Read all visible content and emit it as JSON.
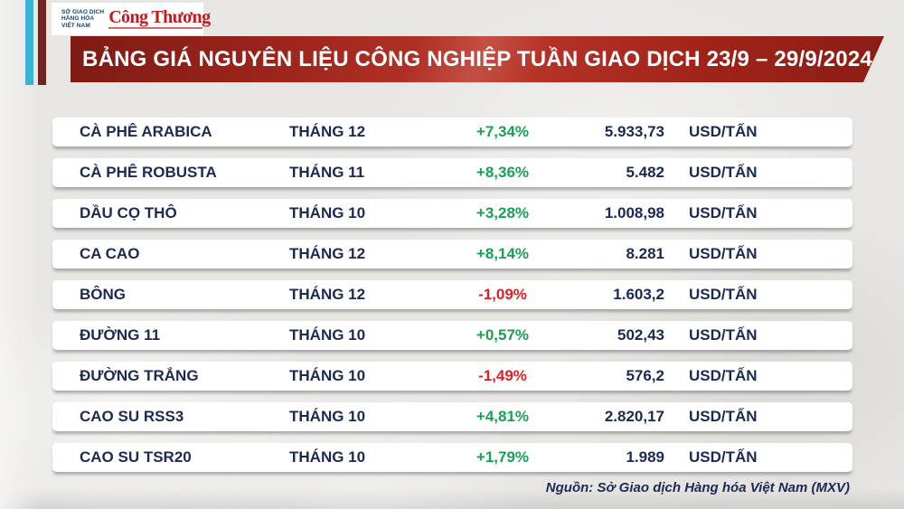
{
  "logos": {
    "mxv": {
      "lines": [
        "SỞ GIAO DỊCH",
        "HÀNG HÓA",
        "VIỆT NAM"
      ]
    },
    "congthuong": {
      "text": "Công Thương"
    }
  },
  "banner": {
    "title": "BẢNG GIÁ NGUYÊN LIỆU CÔNG NGHIỆP TUẦN GIAO DỊCH 23/9 – 29/9/2024"
  },
  "table": {
    "rows": [
      {
        "name": "CÀ PHÊ ARABICA",
        "month": "THÁNG 12",
        "change": "+7,34%",
        "direction": "up",
        "price": "5.933,73",
        "unit": "USD/TẤN"
      },
      {
        "name": "CÀ PHÊ ROBUSTA",
        "month": "THÁNG 11",
        "change": "+8,36%",
        "direction": "up",
        "price": "5.482",
        "unit": "USD/TẤN"
      },
      {
        "name": "DẦU CỌ THÔ",
        "month": "THÁNG 10",
        "change": "+3,28%",
        "direction": "up",
        "price": "1.008,98",
        "unit": "USD/TẤN"
      },
      {
        "name": "CA CAO",
        "month": "THÁNG 12",
        "change": "+8,14%",
        "direction": "up",
        "price": "8.281",
        "unit": "USD/TẤN"
      },
      {
        "name": "BÔNG",
        "month": "THÁNG 12",
        "change": "-1,09%",
        "direction": "down",
        "price": "1.603,2",
        "unit": "USD/TẤN"
      },
      {
        "name": "ĐƯỜNG 11",
        "month": "THÁNG 10",
        "change": "+0,57%",
        "direction": "up",
        "price": "502,43",
        "unit": "USD/TẤN"
      },
      {
        "name": "ĐƯỜNG TRẮNG",
        "month": "THÁNG 10",
        "change": "-1,49%",
        "direction": "down",
        "price": "576,2",
        "unit": "USD/TẤN"
      },
      {
        "name": "CAO SU RSS3",
        "month": "THÁNG 10",
        "change": "+4,81%",
        "direction": "up",
        "price": "2.820,17",
        "unit": "USD/TẤN"
      },
      {
        "name": "CAO SU TSR20",
        "month": "THÁNG 10",
        "change": "+1,79%",
        "direction": "up",
        "price": "1.989",
        "unit": "USD/TẤN"
      }
    ]
  },
  "footer": {
    "source": "Nguồn: Sở Giao dịch Hàng hóa Việt Nam (MXV)"
  },
  "colors": {
    "positive": "#15a251",
    "negative": "#e01f24",
    "text_navy": "#1b2a55",
    "banner_red": "#a3271e",
    "accent_cyan": "#38b5d6",
    "accent_maroon": "#6e2522",
    "brand_red": "#c41a1c",
    "brand_blue": "#29a8df"
  },
  "chart_data": {
    "type": "table",
    "title": "BẢNG GIÁ NGUYÊN LIỆU CÔNG NGHIỆP TUẦN GIAO DỊCH 23/9 – 29/9/2024",
    "rows": [
      {
        "commodity": "CÀ PHÊ ARABICA",
        "contract_month": "THÁNG 12",
        "weekly_change_pct": 7.34,
        "price": 5933.73,
        "unit": "USD/TẤN"
      },
      {
        "commodity": "CÀ PHÊ ROBUSTA",
        "contract_month": "THÁNG 11",
        "weekly_change_pct": 8.36,
        "price": 5482,
        "unit": "USD/TẤN"
      },
      {
        "commodity": "DẦU CỌ THÔ",
        "contract_month": "THÁNG 10",
        "weekly_change_pct": 3.28,
        "price": 1008.98,
        "unit": "USD/TẤN"
      },
      {
        "commodity": "CA CAO",
        "contract_month": "THÁNG 12",
        "weekly_change_pct": 8.14,
        "price": 8281,
        "unit": "USD/TẤN"
      },
      {
        "commodity": "BÔNG",
        "contract_month": "THÁNG 12",
        "weekly_change_pct": -1.09,
        "price": 1603.2,
        "unit": "USD/TẤN"
      },
      {
        "commodity": "ĐƯỜNG 11",
        "contract_month": "THÁNG 10",
        "weekly_change_pct": 0.57,
        "price": 502.43,
        "unit": "USD/TẤN"
      },
      {
        "commodity": "ĐƯỜNG TRẮNG",
        "contract_month": "THÁNG 10",
        "weekly_change_pct": -1.49,
        "price": 576.2,
        "unit": "USD/TẤN"
      },
      {
        "commodity": "CAO SU RSS3",
        "contract_month": "THÁNG 10",
        "weekly_change_pct": 4.81,
        "price": 2820.17,
        "unit": "USD/TẤN"
      },
      {
        "commodity": "CAO SU TSR20",
        "contract_month": "THÁNG 10",
        "weekly_change_pct": 1.79,
        "price": 1989,
        "unit": "USD/TẤN"
      }
    ],
    "source": "Nguồn: Sở Giao dịch Hàng hóa Việt Nam (MXV)"
  }
}
